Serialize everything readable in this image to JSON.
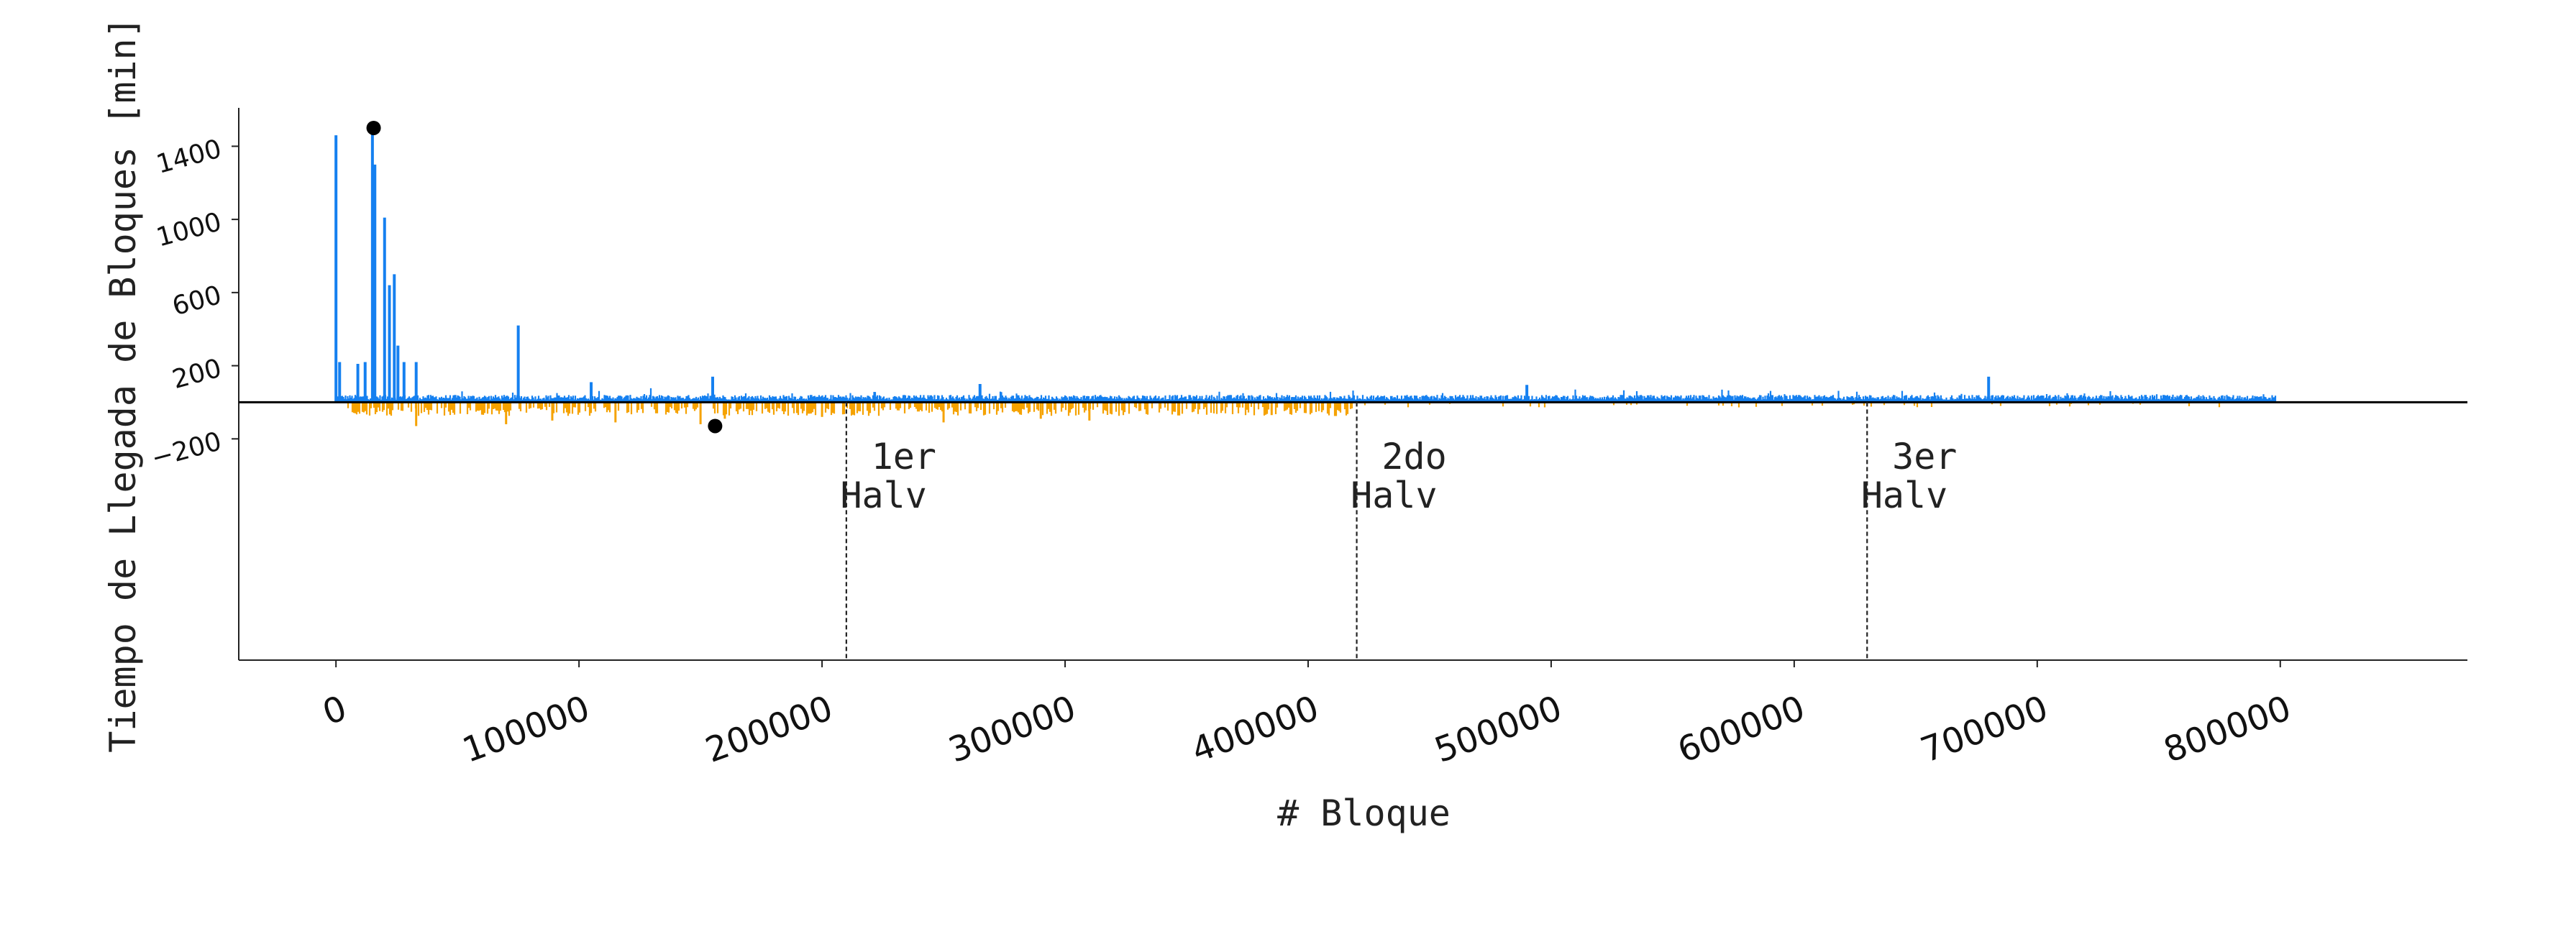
{
  "chart_data": {
    "type": "bar",
    "title": "",
    "xlabel": "# Bloque",
    "ylabel": "Tiempo de Llegada de Bloques [min]",
    "xlim": [
      -40000,
      877000
    ],
    "ylim": [
      -1410,
      1610
    ],
    "x_ticks": [
      {
        "value": 0,
        "label": "0"
      },
      {
        "value": 100000,
        "label": "100000"
      },
      {
        "value": 200000,
        "label": "200000"
      },
      {
        "value": 300000,
        "label": "300000"
      },
      {
        "value": 400000,
        "label": "400000"
      },
      {
        "value": 500000,
        "label": "500000"
      },
      {
        "value": 600000,
        "label": "600000"
      },
      {
        "value": 700000,
        "label": "700000"
      },
      {
        "value": 800000,
        "label": "800000"
      }
    ],
    "y_ticks": [
      {
        "value": 1400,
        "label": "1400"
      },
      {
        "value": 1000,
        "label": "1000"
      },
      {
        "value": 600,
        "label": "600"
      },
      {
        "value": 200,
        "label": "200"
      },
      {
        "value": -200,
        "label": "−200"
      }
    ],
    "grid": false,
    "legend": "none",
    "series": [
      {
        "color": "#1580f0",
        "sign": "positive",
        "x_range": [
          0,
          798000
        ],
        "baseline_level": 30,
        "notable_spikes": [
          {
            "x": 0,
            "y": 1460
          },
          {
            "x": 1500,
            "y": 220
          },
          {
            "x": 9000,
            "y": 210
          },
          {
            "x": 12000,
            "y": 220
          },
          {
            "x": 15000,
            "y": 1480
          },
          {
            "x": 16000,
            "y": 1300
          },
          {
            "x": 20000,
            "y": 1010
          },
          {
            "x": 22000,
            "y": 640
          },
          {
            "x": 24000,
            "y": 700
          },
          {
            "x": 25500,
            "y": 310
          },
          {
            "x": 28000,
            "y": 220
          },
          {
            "x": 33000,
            "y": 220
          },
          {
            "x": 75000,
            "y": 420
          },
          {
            "x": 105000,
            "y": 110
          },
          {
            "x": 155000,
            "y": 140
          },
          {
            "x": 265000,
            "y": 100
          },
          {
            "x": 490000,
            "y": 95
          },
          {
            "x": 680000,
            "y": 140
          }
        ]
      },
      {
        "color": "#f5a200",
        "sign": "negative",
        "x_range": [
          5000,
          780000
        ],
        "notable_spikes": [
          {
            "x": 8000,
            "y": -60
          },
          {
            "x": 33000,
            "y": -130
          },
          {
            "x": 70000,
            "y": -120
          },
          {
            "x": 89000,
            "y": -100
          },
          {
            "x": 115000,
            "y": -110
          },
          {
            "x": 150000,
            "y": -120
          },
          {
            "x": 160000,
            "y": -90
          },
          {
            "x": 200000,
            "y": -80
          },
          {
            "x": 250000,
            "y": -110
          },
          {
            "x": 290000,
            "y": -90
          },
          {
            "x": 310000,
            "y": -100
          },
          {
            "x": 385000,
            "y": -70
          }
        ]
      }
    ],
    "markers": [
      {
        "x": 15500,
        "y": 1500,
        "color": "#000000"
      },
      {
        "x": 156000,
        "y": -130,
        "color": "#000000"
      }
    ],
    "vlines": [
      {
        "x": 210000,
        "y_top": 0,
        "y_bottom": -1410,
        "label_lines": [
          "1er",
          "Halv"
        ]
      },
      {
        "x": 420000,
        "y_top": 0,
        "y_bottom": -1410,
        "label_lines": [
          "2do",
          "Halv"
        ]
      },
      {
        "x": 630000,
        "y_top": 0,
        "y_bottom": -1410,
        "label_lines": [
          "3er",
          "Halv"
        ]
      }
    ],
    "hline": {
      "y": 0,
      "color": "#000000"
    }
  }
}
